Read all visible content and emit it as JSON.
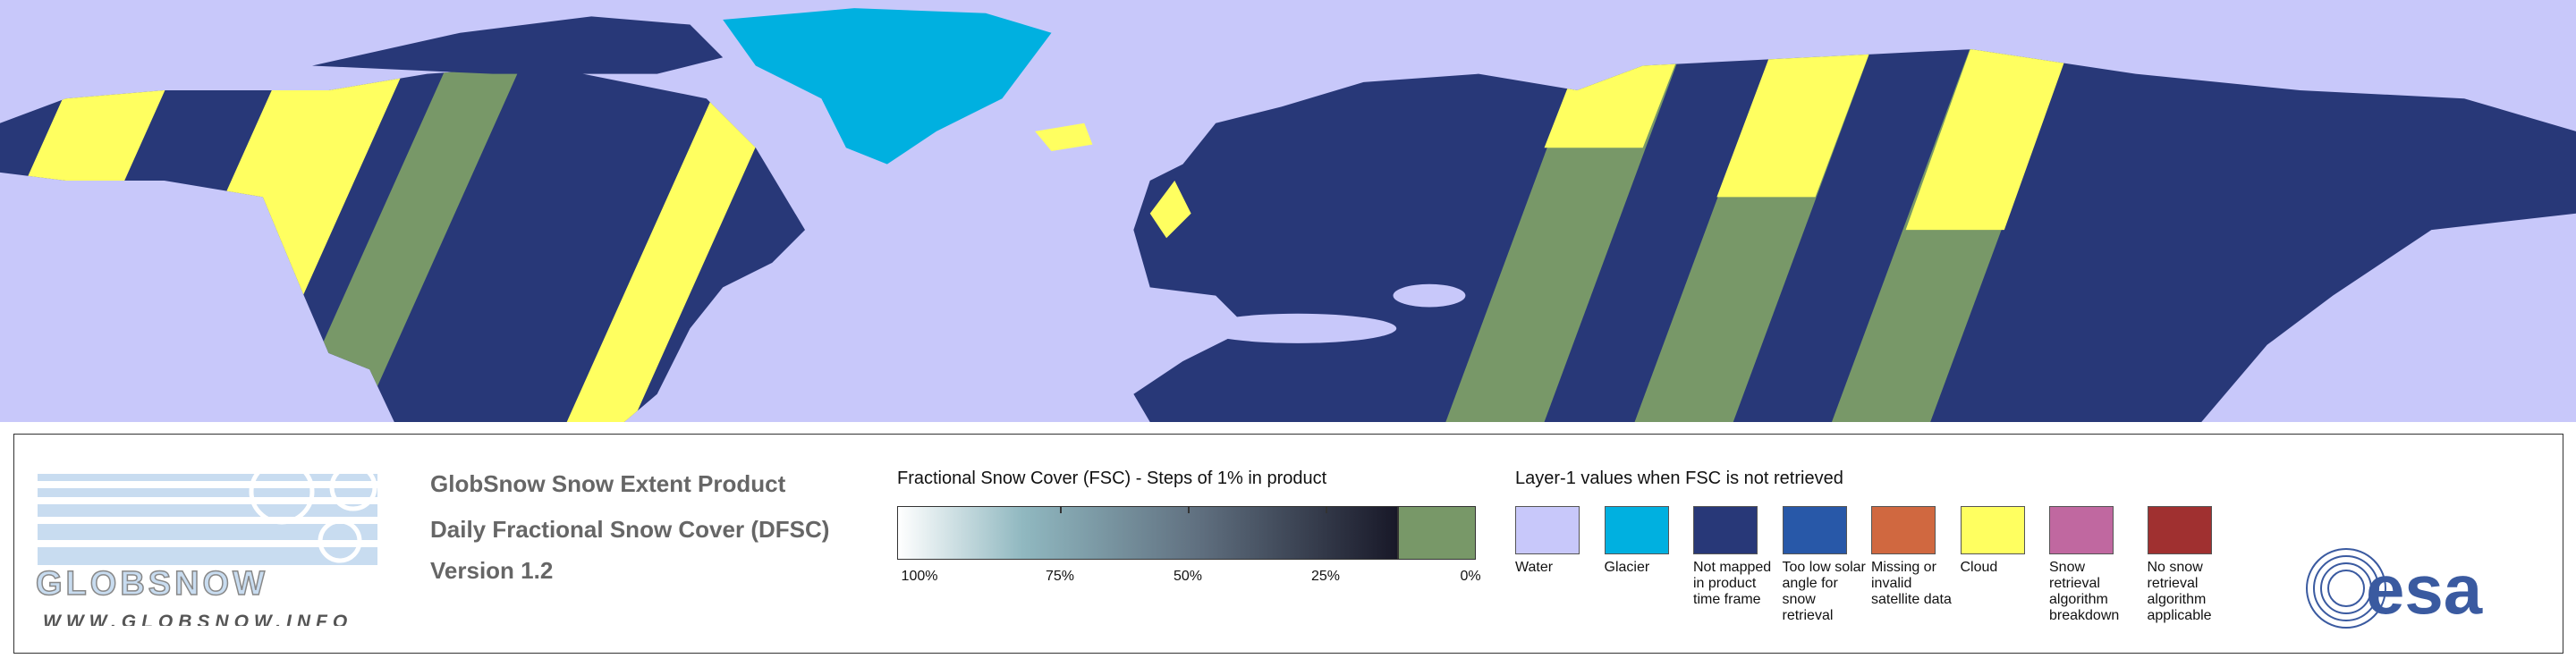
{
  "product": {
    "title": "GlobSnow Snow Extent Product",
    "subtitle": "Daily Fractional Snow Cover (DFSC)",
    "version": "Version 1.2"
  },
  "logo": {
    "name": "GLOBSNOW",
    "url": "WWW.GLOBSNOW.INFO",
    "agency": "esa"
  },
  "colorbar": {
    "title": "Fractional Snow Cover (FSC) - Steps of 1% in product",
    "ticks": [
      "100%",
      "75%",
      "50%",
      "25%",
      "0%"
    ]
  },
  "layer_legend": {
    "title": "Layer-1 values when FSC is not retrieved",
    "items": [
      {
        "label": "Water",
        "color": "#c8c8fa"
      },
      {
        "label": "Glacier",
        "color": "#00b0e0"
      },
      {
        "label": "Not mapped in product time frame",
        "color": "#283878"
      },
      {
        "label": "Too low solar angle for snow retrieval",
        "color": "#2858a8"
      },
      {
        "label": "Missing or invalid satellite data",
        "color": "#d06840"
      },
      {
        "label": "Cloud",
        "color": "#ffff60"
      },
      {
        "label": "Snow retrieval algorithm breakdown",
        "color": "#c068a0"
      },
      {
        "label": "No snow retrieval algorithm applicable",
        "color": "#a03030"
      }
    ]
  }
}
